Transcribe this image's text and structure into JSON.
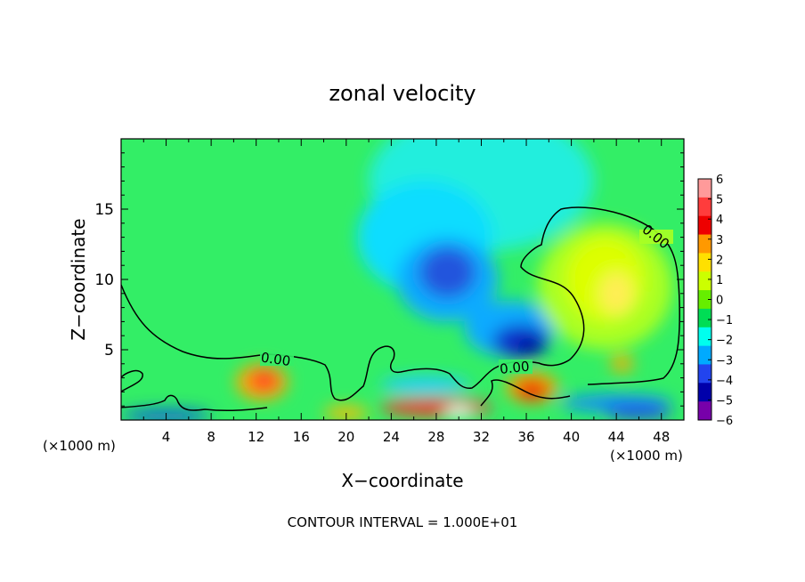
{
  "chart_data": {
    "type": "heatmap",
    "title": "zonal velocity",
    "xlabel": "X−coordinate",
    "ylabel": "Z−coordinate",
    "x_unit": "(×1000 m)",
    "z_unit": "(×1000 m)",
    "xlim": [
      0,
      50
    ],
    "ylim": [
      0,
      20
    ],
    "x_ticks": [
      "4",
      "8",
      "12",
      "16",
      "20",
      "24",
      "28",
      "32",
      "36",
      "40",
      "44",
      "48"
    ],
    "y_ticks": [
      "5",
      "10",
      "15"
    ],
    "contour_level_label": "0.00",
    "footer": "CONTOUR INTERVAL = 1.000E+01",
    "colorbar": {
      "labels": [
        "6",
        "5",
        "4",
        "3",
        "2",
        "1",
        "0",
        "−1",
        "−2",
        "−3",
        "−4",
        "−5",
        "−6"
      ],
      "colors": [
        "#ff9a9a",
        "#ff3c3c",
        "#ee0000",
        "#ff9900",
        "#ffe000",
        "#ccff00",
        "#66ee00",
        "#00dd55",
        "#00ffee",
        "#00aaff",
        "#2244ee",
        "#0000aa",
        "#7700aa"
      ]
    },
    "background_value_color": "#33ee66",
    "features": [
      {
        "x": 32,
        "z": 17,
        "rx": 10,
        "rz": 5,
        "value": -1.7,
        "color": "#22eedd"
      },
      {
        "x": 27,
        "z": 13,
        "rx": 6,
        "rz": 4,
        "value": -2,
        "color": "#11ddff"
      },
      {
        "x": 29,
        "z": 10,
        "rx": 4.5,
        "rz": 3,
        "value": -3,
        "color": "#11aaff"
      },
      {
        "x": 29,
        "z": 10.5,
        "rx": 2.5,
        "rz": 1.8,
        "value": -4,
        "color": "#2255dd"
      },
      {
        "x": 34.5,
        "z": 6.5,
        "rx": 4,
        "rz": 2,
        "value": -3,
        "color": "#11aaff"
      },
      {
        "x": 35.5,
        "z": 5.6,
        "rx": 2.5,
        "rz": 1.2,
        "value": -4.5,
        "color": "#1133cc"
      },
      {
        "x": 36.3,
        "z": 5.3,
        "rx": 1.2,
        "rz": 0.6,
        "value": -5,
        "color": "#000099"
      },
      {
        "x": 43,
        "z": 9.5,
        "rx": 6,
        "rz": 4.5,
        "value": 1,
        "color": "#aaff22"
      },
      {
        "x": 43,
        "z": 10,
        "rx": 3.5,
        "rz": 3,
        "value": 2,
        "color": "#ddff00"
      },
      {
        "x": 44,
        "z": 9,
        "rx": 1.5,
        "rz": 1.5,
        "value": 2.5,
        "color": "#ffee55"
      },
      {
        "x": 12.5,
        "z": 2.7,
        "rx": 2.3,
        "rz": 1.3,
        "value": 3,
        "color": "#ffaa00"
      },
      {
        "x": 12.7,
        "z": 2.8,
        "rx": 1.3,
        "rz": 0.7,
        "value": 4,
        "color": "#ff2222"
      },
      {
        "x": 36.5,
        "z": 2.3,
        "rx": 2.3,
        "rz": 1.1,
        "value": 3,
        "color": "#ffaa00"
      },
      {
        "x": 36.5,
        "z": 2.1,
        "rx": 1.5,
        "rz": 0.7,
        "value": 4.5,
        "color": "#ee0000"
      },
      {
        "x": 28,
        "z": 0.9,
        "rx": 5,
        "rz": 0.6,
        "value": 4,
        "color": "#ff3333"
      },
      {
        "x": 30,
        "z": 0.6,
        "rx": 1.2,
        "rz": 0.4,
        "value": 6,
        "color": "#ffffff"
      },
      {
        "x": 27,
        "z": 2.5,
        "rx": 4,
        "rz": 0.6,
        "value": -2.5,
        "color": "#22ccff"
      },
      {
        "x": 44,
        "z": 1.2,
        "rx": 5,
        "rz": 0.6,
        "value": -3,
        "color": "#1188ff"
      },
      {
        "x": 46,
        "z": 0.5,
        "rx": 3,
        "rz": 0.4,
        "value": -5,
        "color": "#2233dd"
      },
      {
        "x": 4,
        "z": 0.3,
        "rx": 4,
        "rz": 0.4,
        "value": -4,
        "color": "#1144ee"
      },
      {
        "x": 44.5,
        "z": 4,
        "rx": 1,
        "rz": 0.6,
        "value": 3,
        "color": "#ffaa00"
      },
      {
        "x": 20,
        "z": 0.5,
        "rx": 2,
        "rz": 0.5,
        "value": 3,
        "color": "#ffbb00"
      }
    ]
  }
}
